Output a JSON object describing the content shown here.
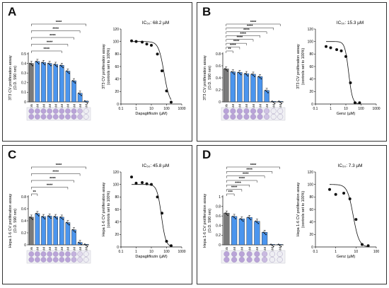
{
  "colors": {
    "control": "#7a7a7a",
    "treated": "#4b95ee",
    "curve": "#111111",
    "well": "#b9a3d8",
    "well_light": "#e8e8ee"
  },
  "chart_data": [
    {
      "type": "bar",
      "panel": "A",
      "letter": "A",
      "bar_ylabel": [
        "3T3 CV proliferation assay",
        "(O.D. 590 nm)"
      ],
      "categories": [
        "Controls",
        "0.5 µM",
        "1 µM",
        "2.5 µM",
        "5 µM",
        "10 µM",
        "25 µM",
        "50 µM",
        "100 µM",
        "200 µM"
      ],
      "values": [
        0.4,
        0.42,
        0.41,
        0.4,
        0.39,
        0.38,
        0.32,
        0.22,
        0.09,
        0.01
      ],
      "ylim": [
        0,
        0.5
      ],
      "yticks": [
        0,
        0.1,
        0.2,
        0.3,
        0.4,
        0.5
      ],
      "significance": [
        [
          0,
          9,
          "****"
        ],
        [
          0,
          8,
          "****"
        ],
        [
          0,
          7,
          "****"
        ],
        [
          0,
          6,
          "****"
        ],
        [
          0,
          5,
          "****"
        ]
      ],
      "ic50": "IC₅₀: 68.2 µM",
      "curve_ylabel": [
        "3T3 CV proliferation assay",
        "(controls set to 100%)"
      ],
      "curve_xlabel": "Dapagliflozin (µM)",
      "x_ticks": [
        "0.1",
        "1",
        "10",
        "100",
        "1000"
      ],
      "y_ticks": [
        "0",
        "20",
        "40",
        "60",
        "80",
        "100",
        "120"
      ],
      "curve_points": [
        [
          0.5,
          101
        ],
        [
          1,
          100
        ],
        [
          2.5,
          99
        ],
        [
          5,
          96
        ],
        [
          10,
          94
        ],
        [
          25,
          80
        ],
        [
          50,
          53
        ],
        [
          100,
          21
        ],
        [
          200,
          3
        ]
      ],
      "curve_fit": {
        "ic50": 68.2,
        "hill": 2.4
      },
      "wells": [
        1,
        1,
        1,
        1,
        1,
        1,
        1,
        1,
        0.7,
        0
      ]
    },
    {
      "type": "bar",
      "panel": "B",
      "letter": "B",
      "bar_ylabel": [
        "3T3 CV proliferation assay",
        "(O.D. 590 nm)"
      ],
      "categories": [
        "Controls",
        "0.5 µM",
        "1 µM",
        "2.5 µM",
        "5 µM",
        "10 µM",
        "20 µM",
        "40 µM",
        "80 µM"
      ],
      "values": [
        0.55,
        0.5,
        0.49,
        0.47,
        0.46,
        0.42,
        0.19,
        0.01,
        0.01
      ],
      "ylim": [
        0,
        0.8
      ],
      "yticks": [
        0,
        0.2,
        0.4,
        0.6,
        0.8
      ],
      "significance": [
        [
          0,
          8,
          "****"
        ],
        [
          0,
          7,
          "****"
        ],
        [
          0,
          6,
          "****"
        ],
        [
          0,
          5,
          "****"
        ],
        [
          0,
          4,
          "****"
        ],
        [
          0,
          3,
          "****"
        ],
        [
          0,
          2,
          "****"
        ],
        [
          0,
          1,
          "**"
        ]
      ],
      "ic50": "IC₅₀: 15.3 µM",
      "curve_ylabel": [
        "3T3 CV proliferation assay",
        "(controls set to 100%)"
      ],
      "curve_xlabel": "Genz (µM)",
      "x_ticks": [
        "0.1",
        "1",
        "10",
        "100",
        "1000"
      ],
      "y_ticks": [
        "0",
        "20",
        "40",
        "60",
        "80",
        "100",
        "120"
      ],
      "curve_points": [
        [
          0.5,
          92
        ],
        [
          1,
          90
        ],
        [
          2.5,
          87
        ],
        [
          5,
          85
        ],
        [
          10,
          76
        ],
        [
          20,
          34
        ],
        [
          40,
          2
        ],
        [
          80,
          2
        ]
      ],
      "curve_fit": {
        "ic50": 15.3,
        "hill": 3.5
      },
      "wells": [
        1,
        1,
        1,
        1,
        1,
        1,
        0.6,
        0,
        0
      ]
    },
    {
      "type": "bar",
      "panel": "C",
      "letter": "C",
      "bar_ylabel": [
        "Hepa 1-6 CV proliferation assay",
        "(O.D. 590 nm)"
      ],
      "categories": [
        "Controls",
        "0.5 µM",
        "1 µM",
        "2.5 µM",
        "5 µM",
        "10 µM",
        "25 µM",
        "50 µM",
        "100 µM",
        "200 µM"
      ],
      "values": [
        0.46,
        0.52,
        0.47,
        0.48,
        0.47,
        0.46,
        0.37,
        0.25,
        0.04,
        0.01
      ],
      "ylim": [
        0,
        0.8
      ],
      "yticks": [
        0,
        0.2,
        0.4,
        0.6,
        0.8
      ],
      "significance": [
        [
          0,
          9,
          "****"
        ],
        [
          0,
          8,
          "****"
        ],
        [
          0,
          7,
          "****"
        ],
        [
          0,
          6,
          "****"
        ],
        [
          0,
          1,
          "**"
        ]
      ],
      "ic50": "IC₅₀: 45.8 µM",
      "curve_ylabel": [
        "Hepa 1-6 CV proliferation assay",
        "(controls set to 100%)"
      ],
      "curve_xlabel": "Dapagliflozin (µM)",
      "x_ticks": [
        "0.1",
        "1",
        "10",
        "100",
        "1000"
      ],
      "y_ticks": [
        "0",
        "20",
        "40",
        "60",
        "80",
        "100",
        "120"
      ],
      "curve_points": [
        [
          0.5,
          112
        ],
        [
          1,
          102
        ],
        [
          2.5,
          103
        ],
        [
          5,
          101
        ],
        [
          10,
          100
        ],
        [
          25,
          80
        ],
        [
          50,
          54
        ],
        [
          100,
          9
        ],
        [
          200,
          2
        ]
      ],
      "curve_fit": {
        "ic50": 45.8,
        "hill": 3.0
      },
      "wells": [
        1,
        1,
        1,
        1,
        1,
        1,
        1,
        0.8,
        0.3,
        0
      ]
    },
    {
      "type": "bar",
      "panel": "D",
      "letter": "D",
      "bar_ylabel": [
        "Hepa 1-6 CV proliferation assay",
        "(O.D. 590 nm)"
      ],
      "categories": [
        "Controls",
        "0.5 µM",
        "1 µM",
        "2.5 µM",
        "5 µM",
        "10 µM",
        "20 µM",
        "40 µM"
      ],
      "values": [
        0.66,
        0.59,
        0.54,
        0.57,
        0.49,
        0.26,
        0.01,
        0.01
      ],
      "ylim": [
        0,
        1.0
      ],
      "yticks": [
        0,
        0.2,
        0.4,
        0.6,
        0.8,
        1.0
      ],
      "significance": [
        [
          0,
          7,
          "****"
        ],
        [
          0,
          6,
          "****"
        ],
        [
          0,
          5,
          "****"
        ],
        [
          0,
          4,
          "****"
        ],
        [
          0,
          3,
          "****"
        ],
        [
          0,
          2,
          "****"
        ],
        [
          0,
          1,
          "***"
        ]
      ],
      "ic50": "IC₅₀: 7.3 µM",
      "curve_ylabel": [
        "Hepa 1-6 CV proliferation assay",
        "(controls set to 100%)"
      ],
      "curve_xlabel": "Genz (µM)",
      "x_ticks": [
        "0.1",
        "1",
        "10",
        "100"
      ],
      "y_ticks": [
        "0",
        "20",
        "40",
        "60",
        "80",
        "100",
        "120"
      ],
      "curve_points": [
        [
          0.5,
          92
        ],
        [
          1,
          84
        ],
        [
          2.5,
          86
        ],
        [
          5,
          77
        ],
        [
          10,
          44
        ],
        [
          20,
          4
        ],
        [
          40,
          2
        ]
      ],
      "curve_fit": {
        "ic50": 7.3,
        "hill": 3.0
      },
      "wells": [
        1,
        1,
        1,
        1,
        1,
        0.7,
        0,
        0
      ]
    }
  ]
}
